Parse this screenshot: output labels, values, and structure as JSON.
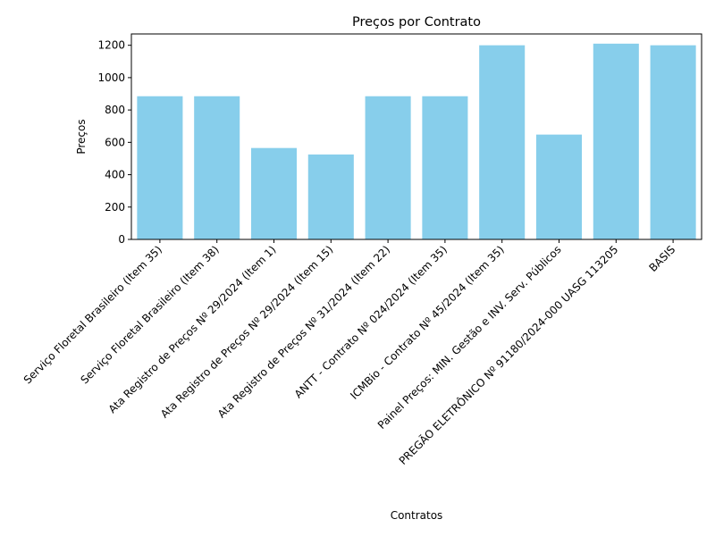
{
  "chart_data": {
    "type": "bar",
    "title": "Preços por Contrato",
    "xlabel": "Contratos",
    "ylabel": "Preços",
    "categories": [
      "Serviço Floretal Brasileiro (Item 35)",
      "Serviço Floretal Brasileiro (Item 38)",
      "Ata Registro de Preços Nº 29/2024 (Item 1)",
      "Ata Registro de Preços Nº 29/2024 (Item 15)",
      "Ata Registro de Preços Nº 31/2024 (Item 22)",
      "ANTT - Contrato Nº 024/2024 (Item 35)",
      "ICMBio - Contrato Nº 45/2024 (Item 35)",
      "Painel Preços: MIN. Gestão e INV. Serv. Públicos",
      "PREGÃO ELETRÔNICO Nº 91180/2024-000 UASG 113205",
      "BASIS"
    ],
    "values": [
      885,
      885,
      565,
      525,
      885,
      885,
      1200,
      648,
      1210,
      1200
    ],
    "ylim": [
      0,
      1270
    ],
    "yticks": [
      0,
      200,
      400,
      600,
      800,
      1000,
      1200
    ],
    "grid": false,
    "bar_color": "#87ceeb"
  }
}
